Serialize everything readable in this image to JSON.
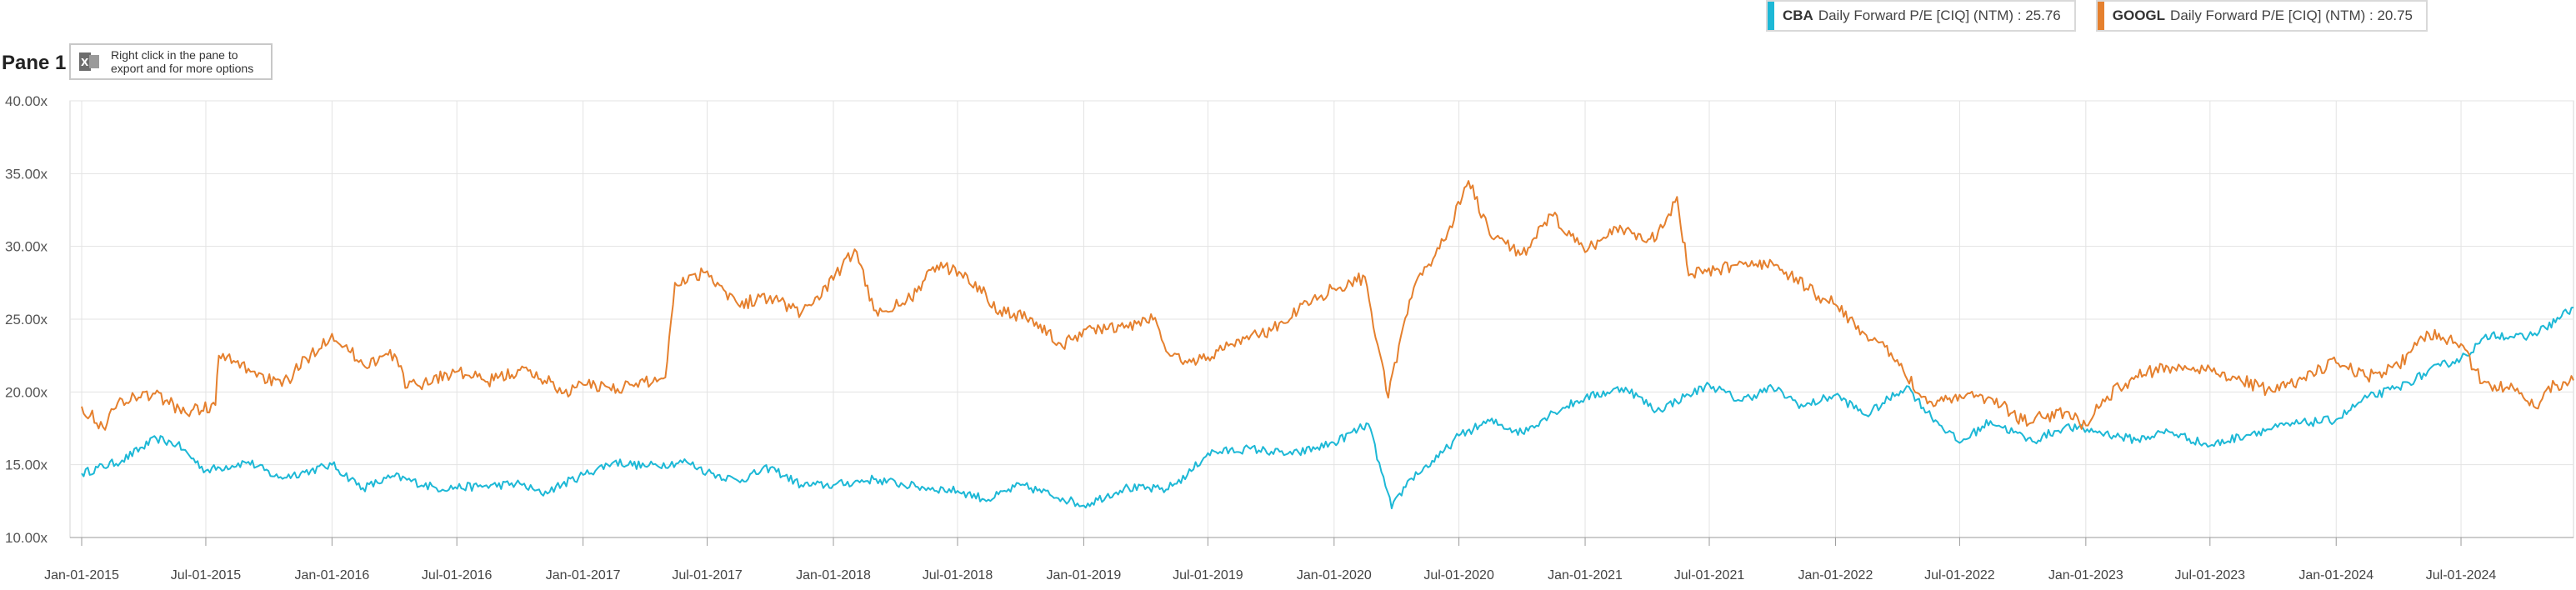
{
  "legend": {
    "items": [
      {
        "ticker": "CBA",
        "label": "Daily Forward P/E [CIQ] (NTM) : 25.76",
        "color": "#1db8d6"
      },
      {
        "ticker": "GOOGL",
        "label": "Daily Forward P/E [CIQ] (NTM) : 20.75",
        "color": "#e5802e"
      }
    ]
  },
  "pane": {
    "title": "Pane 1",
    "hint": "Right click in the pane to\nexport and for more options",
    "hint_icon": "excel-icon"
  },
  "chart_data": {
    "type": "line",
    "title": "",
    "xlabel": "",
    "ylabel": "",
    "grid": true,
    "legend_position": "top-right",
    "ylim": [
      10,
      40
    ],
    "xlim": [
      "2014-12-15",
      "2024-12-12"
    ],
    "y_ticks": [
      "10.00x",
      "15.00x",
      "20.00x",
      "25.00x",
      "30.00x",
      "35.00x",
      "40.00x"
    ],
    "x_ticks": [
      {
        "date": "2015-01-01",
        "label": "Jan-01-2015"
      },
      {
        "date": "2015-07-01",
        "label": "Jul-01-2015"
      },
      {
        "date": "2016-01-01",
        "label": "Jan-01-2016"
      },
      {
        "date": "2016-07-01",
        "label": "Jul-01-2016"
      },
      {
        "date": "2017-01-01",
        "label": "Jan-01-2017"
      },
      {
        "date": "2017-07-01",
        "label": "Jul-01-2017"
      },
      {
        "date": "2018-01-01",
        "label": "Jan-01-2018"
      },
      {
        "date": "2018-07-01",
        "label": "Jul-01-2018"
      },
      {
        "date": "2019-01-01",
        "label": "Jan-01-2019"
      },
      {
        "date": "2019-07-01",
        "label": "Jul-01-2019"
      },
      {
        "date": "2020-01-01",
        "label": "Jan-01-2020"
      },
      {
        "date": "2020-07-01",
        "label": "Jul-01-2020"
      },
      {
        "date": "2021-01-01",
        "label": "Jan-01-2021"
      },
      {
        "date": "2021-07-01",
        "label": "Jul-01-2021"
      },
      {
        "date": "2022-01-01",
        "label": "Jan-01-2022"
      },
      {
        "date": "2022-07-01",
        "label": "Jul-01-2022"
      },
      {
        "date": "2023-01-01",
        "label": "Jan-01-2023"
      },
      {
        "date": "2023-07-01",
        "label": "Jul-01-2023"
      },
      {
        "date": "2024-01-01",
        "label": "Jan-01-2024"
      },
      {
        "date": "2024-07-01",
        "label": "Jul-01-2024"
      }
    ],
    "series": [
      {
        "name": "CBA Daily Forward P/E [CIQ] (NTM) : 25.76",
        "color": "#1db8d6",
        "points": [
          [
            "2015-01-01",
            14.4
          ],
          [
            "2015-03-01",
            15.3
          ],
          [
            "2015-04-20",
            16.8
          ],
          [
            "2015-05-20",
            16.4
          ],
          [
            "2015-07-01",
            14.6
          ],
          [
            "2015-09-01",
            15.2
          ],
          [
            "2015-10-15",
            14.1
          ],
          [
            "2015-12-01",
            14.6
          ],
          [
            "2016-01-01",
            15.0
          ],
          [
            "2016-02-15",
            13.4
          ],
          [
            "2016-04-01",
            14.2
          ],
          [
            "2016-06-01",
            13.4
          ],
          [
            "2016-08-01",
            13.5
          ],
          [
            "2016-10-01",
            13.7
          ],
          [
            "2016-11-01",
            13.0
          ],
          [
            "2017-01-01",
            14.3
          ],
          [
            "2017-02-15",
            15.2
          ],
          [
            "2017-04-01",
            14.9
          ],
          [
            "2017-06-01",
            15.2
          ],
          [
            "2017-07-01",
            14.5
          ],
          [
            "2017-08-15",
            13.9
          ],
          [
            "2017-10-01",
            14.8
          ],
          [
            "2017-11-15",
            13.6
          ],
          [
            "2018-01-01",
            13.6
          ],
          [
            "2018-03-01",
            14.0
          ],
          [
            "2018-05-01",
            13.5
          ],
          [
            "2018-07-01",
            13.2
          ],
          [
            "2018-08-15",
            12.6
          ],
          [
            "2018-10-01",
            13.6
          ],
          [
            "2018-12-01",
            12.7
          ],
          [
            "2019-01-01",
            12.2
          ],
          [
            "2019-03-01",
            13.4
          ],
          [
            "2019-05-01",
            13.3
          ],
          [
            "2019-06-01",
            14.3
          ],
          [
            "2019-07-01",
            15.8
          ],
          [
            "2019-09-01",
            16.1
          ],
          [
            "2019-11-01",
            15.7
          ],
          [
            "2020-01-01",
            16.5
          ],
          [
            "2020-02-20",
            17.8
          ],
          [
            "2020-03-10",
            14.5
          ],
          [
            "2020-03-25",
            12.0
          ],
          [
            "2020-04-20",
            14.0
          ],
          [
            "2020-06-01",
            15.5
          ],
          [
            "2020-07-01",
            17.0
          ],
          [
            "2020-08-15",
            18.0
          ],
          [
            "2020-10-01",
            17.2
          ],
          [
            "2020-11-15",
            18.6
          ],
          [
            "2021-01-01",
            19.6
          ],
          [
            "2021-03-01",
            20.3
          ],
          [
            "2021-04-15",
            18.7
          ],
          [
            "2021-06-01",
            19.8
          ],
          [
            "2021-07-01",
            20.5
          ],
          [
            "2021-08-15",
            19.4
          ],
          [
            "2021-10-01",
            20.3
          ],
          [
            "2021-11-15",
            19.0
          ],
          [
            "2022-01-01",
            19.8
          ],
          [
            "2022-02-15",
            18.4
          ],
          [
            "2022-04-15",
            20.4
          ],
          [
            "2022-05-15",
            18.6
          ],
          [
            "2022-07-01",
            16.5
          ],
          [
            "2022-08-15",
            18.0
          ],
          [
            "2022-10-15",
            16.6
          ],
          [
            "2022-12-01",
            17.6
          ],
          [
            "2023-01-15",
            17.3
          ],
          [
            "2023-03-15",
            16.7
          ],
          [
            "2023-05-01",
            17.3
          ],
          [
            "2023-07-01",
            16.3
          ],
          [
            "2023-09-01",
            17.2
          ],
          [
            "2023-11-01",
            17.8
          ],
          [
            "2024-01-01",
            18.1
          ],
          [
            "2024-02-15",
            19.6
          ],
          [
            "2024-04-01",
            20.3
          ],
          [
            "2024-06-01",
            21.8
          ],
          [
            "2024-07-01",
            22.3
          ],
          [
            "2024-08-15",
            24.0
          ],
          [
            "2024-10-01",
            23.7
          ],
          [
            "2024-11-01",
            24.4
          ],
          [
            "2024-12-12",
            25.8
          ]
        ]
      },
      {
        "name": "GOOGL Daily Forward P/E [CIQ] (NTM) : 20.75",
        "color": "#e5802e",
        "points": [
          [
            "2015-01-01",
            19.0
          ],
          [
            "2015-02-01",
            17.6
          ],
          [
            "2015-03-01",
            19.5
          ],
          [
            "2015-04-15",
            19.9
          ],
          [
            "2015-06-01",
            18.6
          ],
          [
            "2015-07-15",
            19.1
          ],
          [
            "2015-07-20",
            22.5
          ],
          [
            "2015-09-01",
            21.6
          ],
          [
            "2015-10-20",
            20.4
          ],
          [
            "2015-12-01",
            22.6
          ],
          [
            "2016-01-01",
            24.0
          ],
          [
            "2016-02-15",
            21.9
          ],
          [
            "2016-04-01",
            22.6
          ],
          [
            "2016-04-20",
            20.3
          ],
          [
            "2016-07-01",
            21.4
          ],
          [
            "2016-08-15",
            20.7
          ],
          [
            "2016-10-01",
            21.5
          ],
          [
            "2016-11-15",
            20.7
          ],
          [
            "2016-12-01",
            19.9
          ],
          [
            "2017-01-01",
            20.5
          ],
          [
            "2017-03-01",
            20.3
          ],
          [
            "2017-05-01",
            21.0
          ],
          [
            "2017-05-15",
            27.5
          ],
          [
            "2017-07-01",
            28.3
          ],
          [
            "2017-08-15",
            26.0
          ],
          [
            "2017-10-01",
            26.6
          ],
          [
            "2017-11-15",
            25.4
          ],
          [
            "2018-01-01",
            27.7
          ],
          [
            "2018-02-01",
            29.8
          ],
          [
            "2018-03-01",
            25.6
          ],
          [
            "2018-04-15",
            26.0
          ],
          [
            "2018-06-01",
            28.7
          ],
          [
            "2018-07-15",
            28.0
          ],
          [
            "2018-09-01",
            25.6
          ],
          [
            "2018-10-15",
            25.1
          ],
          [
            "2018-12-01",
            23.1
          ],
          [
            "2019-01-01",
            24.3
          ],
          [
            "2019-03-01",
            24.4
          ],
          [
            "2019-04-15",
            25.1
          ],
          [
            "2019-05-01",
            22.8
          ],
          [
            "2019-06-01",
            22.0
          ],
          [
            "2019-07-01",
            22.4
          ],
          [
            "2019-08-15",
            23.6
          ],
          [
            "2019-10-01",
            24.2
          ],
          [
            "2019-12-01",
            26.4
          ],
          [
            "2020-01-01",
            27.1
          ],
          [
            "2020-02-15",
            27.9
          ],
          [
            "2020-03-20",
            19.6
          ],
          [
            "2020-04-20",
            26.3
          ],
          [
            "2020-05-15",
            28.6
          ],
          [
            "2020-06-15",
            31.0
          ],
          [
            "2020-07-15",
            34.5
          ],
          [
            "2020-08-15",
            30.8
          ],
          [
            "2020-10-01",
            29.5
          ],
          [
            "2020-11-15",
            32.1
          ],
          [
            "2021-01-01",
            29.6
          ],
          [
            "2021-02-15",
            31.3
          ],
          [
            "2021-04-15",
            30.5
          ],
          [
            "2021-05-15",
            33.4
          ],
          [
            "2021-06-01",
            28.0
          ],
          [
            "2021-07-15",
            28.4
          ],
          [
            "2021-09-01",
            29.0
          ],
          [
            "2021-10-15",
            28.4
          ],
          [
            "2021-12-01",
            26.8
          ],
          [
            "2022-01-01",
            26.0
          ],
          [
            "2022-02-15",
            23.9
          ],
          [
            "2022-04-01",
            22.2
          ],
          [
            "2022-05-15",
            19.2
          ],
          [
            "2022-07-01",
            19.8
          ],
          [
            "2022-08-15",
            19.6
          ],
          [
            "2022-10-01",
            18.0
          ],
          [
            "2022-12-01",
            18.6
          ],
          [
            "2023-01-01",
            17.7
          ],
          [
            "2023-02-01",
            19.7
          ],
          [
            "2023-03-15",
            21.1
          ],
          [
            "2023-05-01",
            21.7
          ],
          [
            "2023-07-01",
            21.6
          ],
          [
            "2023-08-15",
            20.8
          ],
          [
            "2023-10-01",
            20.0
          ],
          [
            "2023-11-15",
            21.0
          ],
          [
            "2024-01-01",
            22.0
          ],
          [
            "2024-02-15",
            21.0
          ],
          [
            "2024-04-01",
            21.8
          ],
          [
            "2024-05-15",
            24.0
          ],
          [
            "2024-07-01",
            23.3
          ],
          [
            "2024-08-01",
            20.6
          ],
          [
            "2024-09-15",
            20.3
          ],
          [
            "2024-10-15",
            19.0
          ],
          [
            "2024-11-15",
            20.5
          ],
          [
            "2024-12-12",
            20.8
          ]
        ]
      }
    ]
  }
}
